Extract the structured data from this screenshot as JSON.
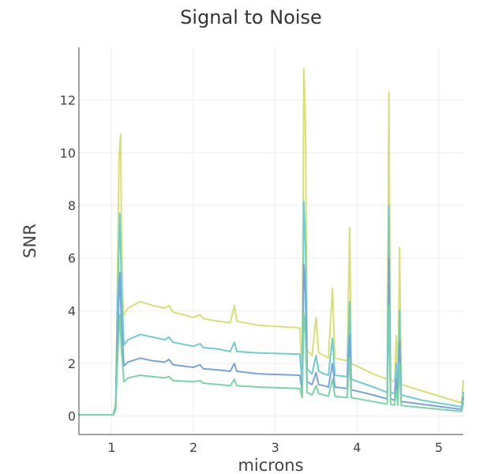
{
  "chart_data": {
    "type": "line",
    "title": "Signal to Noise",
    "xlabel": "microns",
    "ylabel": "SNR",
    "xlim": [
      0.6,
      5.3
    ],
    "ylim": [
      -0.7,
      14
    ],
    "xticks": [
      1,
      2,
      3,
      4,
      5
    ],
    "yticks": [
      0,
      2,
      4,
      6,
      8,
      10,
      12
    ],
    "grid": true,
    "series": [
      {
        "color": "#d8df75",
        "points": [
          [
            0.6,
            0.05
          ],
          [
            1.02,
            0.05
          ],
          [
            1.05,
            0.5
          ],
          [
            1.07,
            5.0
          ],
          [
            1.09,
            9.8
          ],
          [
            1.11,
            10.7
          ],
          [
            1.12,
            7.0
          ],
          [
            1.14,
            3.8
          ],
          [
            1.2,
            4.1
          ],
          [
            1.35,
            4.35
          ],
          [
            1.5,
            4.2
          ],
          [
            1.65,
            4.1
          ],
          [
            1.7,
            4.2
          ],
          [
            1.75,
            3.95
          ],
          [
            2.0,
            3.75
          ],
          [
            2.08,
            3.85
          ],
          [
            2.12,
            3.7
          ],
          [
            2.3,
            3.6
          ],
          [
            2.45,
            3.55
          ],
          [
            2.5,
            4.2
          ],
          [
            2.53,
            3.6
          ],
          [
            2.8,
            3.45
          ],
          [
            3.3,
            3.35
          ],
          [
            3.33,
            1.5
          ],
          [
            3.35,
            13.2
          ],
          [
            3.37,
            11.0
          ],
          [
            3.39,
            2.5
          ],
          [
            3.45,
            2.3
          ],
          [
            3.5,
            3.75
          ],
          [
            3.53,
            2.4
          ],
          [
            3.6,
            2.3
          ],
          [
            3.65,
            2.2
          ],
          [
            3.7,
            4.85
          ],
          [
            3.73,
            2.2
          ],
          [
            3.88,
            2.1
          ],
          [
            3.91,
            7.15
          ],
          [
            3.93,
            2.0
          ],
          [
            4.2,
            1.6
          ],
          [
            4.37,
            1.4
          ],
          [
            4.39,
            12.3
          ],
          [
            4.41,
            1.4
          ],
          [
            4.46,
            1.3
          ],
          [
            4.48,
            3.05
          ],
          [
            4.5,
            1.3
          ],
          [
            4.52,
            6.4
          ],
          [
            4.54,
            1.2
          ],
          [
            4.8,
            0.95
          ],
          [
            5.28,
            0.5
          ],
          [
            5.3,
            1.35
          ]
        ]
      },
      {
        "color": "#6fcdd0",
        "points": [
          [
            0.6,
            0.05
          ],
          [
            1.02,
            0.05
          ],
          [
            1.05,
            0.4
          ],
          [
            1.07,
            4.0
          ],
          [
            1.1,
            7.7
          ],
          [
            1.12,
            5.0
          ],
          [
            1.15,
            2.7
          ],
          [
            1.2,
            2.9
          ],
          [
            1.35,
            3.1
          ],
          [
            1.5,
            3.0
          ],
          [
            1.65,
            2.9
          ],
          [
            1.7,
            3.0
          ],
          [
            1.75,
            2.8
          ],
          [
            2.0,
            2.65
          ],
          [
            2.08,
            2.75
          ],
          [
            2.12,
            2.6
          ],
          [
            2.3,
            2.55
          ],
          [
            2.45,
            2.45
          ],
          [
            2.5,
            2.8
          ],
          [
            2.53,
            2.45
          ],
          [
            2.8,
            2.4
          ],
          [
            3.3,
            2.35
          ],
          [
            3.33,
            1.2
          ],
          [
            3.35,
            8.15
          ],
          [
            3.37,
            6.5
          ],
          [
            3.39,
            1.8
          ],
          [
            3.45,
            1.6
          ],
          [
            3.5,
            2.3
          ],
          [
            3.53,
            1.7
          ],
          [
            3.6,
            1.6
          ],
          [
            3.65,
            1.55
          ],
          [
            3.7,
            2.95
          ],
          [
            3.73,
            1.55
          ],
          [
            3.88,
            1.5
          ],
          [
            3.91,
            4.35
          ],
          [
            3.93,
            1.4
          ],
          [
            4.2,
            1.1
          ],
          [
            4.37,
            0.9
          ],
          [
            4.39,
            8.0
          ],
          [
            4.41,
            0.9
          ],
          [
            4.46,
            0.85
          ],
          [
            4.48,
            2.0
          ],
          [
            4.5,
            0.85
          ],
          [
            4.52,
            4.0
          ],
          [
            4.54,
            0.8
          ],
          [
            4.8,
            0.6
          ],
          [
            5.28,
            0.35
          ],
          [
            5.3,
            0.9
          ]
        ]
      },
      {
        "color": "#78a4db",
        "points": [
          [
            0.6,
            0.05
          ],
          [
            1.02,
            0.05
          ],
          [
            1.05,
            0.3
          ],
          [
            1.07,
            2.8
          ],
          [
            1.1,
            5.45
          ],
          [
            1.12,
            3.5
          ],
          [
            1.15,
            1.9
          ],
          [
            1.2,
            2.05
          ],
          [
            1.35,
            2.2
          ],
          [
            1.5,
            2.1
          ],
          [
            1.65,
            2.05
          ],
          [
            1.7,
            2.15
          ],
          [
            1.75,
            1.95
          ],
          [
            2.0,
            1.85
          ],
          [
            2.08,
            1.95
          ],
          [
            2.12,
            1.8
          ],
          [
            2.3,
            1.75
          ],
          [
            2.45,
            1.7
          ],
          [
            2.5,
            2.0
          ],
          [
            2.53,
            1.7
          ],
          [
            2.8,
            1.6
          ],
          [
            3.3,
            1.55
          ],
          [
            3.33,
            0.95
          ],
          [
            3.35,
            5.75
          ],
          [
            3.37,
            4.6
          ],
          [
            3.39,
            1.3
          ],
          [
            3.45,
            1.2
          ],
          [
            3.5,
            1.65
          ],
          [
            3.53,
            1.2
          ],
          [
            3.6,
            1.15
          ],
          [
            3.65,
            1.1
          ],
          [
            3.7,
            2.0
          ],
          [
            3.73,
            1.1
          ],
          [
            3.88,
            1.05
          ],
          [
            3.91,
            3.1
          ],
          [
            3.93,
            1.0
          ],
          [
            4.2,
            0.8
          ],
          [
            4.37,
            0.65
          ],
          [
            4.39,
            6.0
          ],
          [
            4.41,
            0.65
          ],
          [
            4.46,
            0.6
          ],
          [
            4.48,
            1.4
          ],
          [
            4.5,
            0.6
          ],
          [
            4.52,
            2.8
          ],
          [
            4.54,
            0.55
          ],
          [
            4.8,
            0.45
          ],
          [
            5.28,
            0.25
          ],
          [
            5.3,
            0.7
          ]
        ]
      },
      {
        "color": "#7dd3a8",
        "points": [
          [
            0.6,
            0.05
          ],
          [
            1.02,
            0.05
          ],
          [
            1.05,
            0.25
          ],
          [
            1.07,
            2.0
          ],
          [
            1.1,
            3.85
          ],
          [
            1.12,
            2.5
          ],
          [
            1.15,
            1.3
          ],
          [
            1.2,
            1.45
          ],
          [
            1.35,
            1.55
          ],
          [
            1.5,
            1.5
          ],
          [
            1.65,
            1.45
          ],
          [
            1.7,
            1.5
          ],
          [
            1.75,
            1.35
          ],
          [
            2.0,
            1.3
          ],
          [
            2.08,
            1.35
          ],
          [
            2.12,
            1.25
          ],
          [
            2.3,
            1.2
          ],
          [
            2.45,
            1.15
          ],
          [
            2.5,
            1.4
          ],
          [
            2.53,
            1.15
          ],
          [
            2.8,
            1.1
          ],
          [
            3.3,
            1.05
          ],
          [
            3.33,
            0.7
          ],
          [
            3.35,
            3.9
          ],
          [
            3.37,
            3.1
          ],
          [
            3.39,
            0.9
          ],
          [
            3.45,
            0.8
          ],
          [
            3.5,
            1.15
          ],
          [
            3.53,
            0.85
          ],
          [
            3.6,
            0.8
          ],
          [
            3.65,
            0.75
          ],
          [
            3.7,
            1.4
          ],
          [
            3.73,
            0.75
          ],
          [
            3.88,
            0.7
          ],
          [
            3.91,
            2.2
          ],
          [
            3.93,
            0.7
          ],
          [
            4.2,
            0.55
          ],
          [
            4.37,
            0.45
          ],
          [
            4.39,
            4.2
          ],
          [
            4.41,
            0.45
          ],
          [
            4.46,
            0.42
          ],
          [
            4.48,
            1.0
          ],
          [
            4.5,
            0.42
          ],
          [
            4.52,
            2.0
          ],
          [
            4.54,
            0.4
          ],
          [
            4.8,
            0.32
          ],
          [
            5.28,
            0.18
          ],
          [
            5.3,
            0.5
          ]
        ]
      }
    ]
  }
}
